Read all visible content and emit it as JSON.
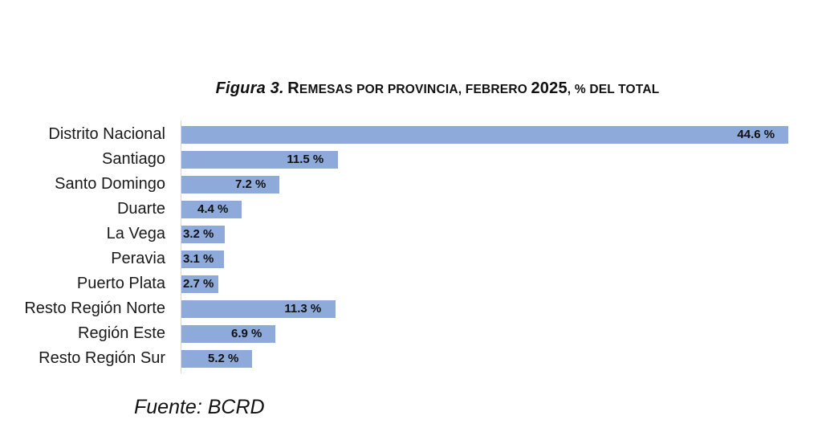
{
  "chart_data": {
    "type": "bar",
    "orientation": "horizontal",
    "title": "Figura 3. Remesas por provincia, febrero 2025, % del total",
    "title_parts": {
      "figure": "Figura 3.",
      "text": " Remesas por provincia, febrero ",
      "year": "2025",
      "rest": ", % del total"
    },
    "xlabel": "",
    "ylabel": "",
    "categories": [
      "Distrito Nacional",
      "Santiago",
      "Santo Domingo",
      "Duarte",
      "La Vega",
      "Peravia",
      "Puerto Plata",
      "Resto Región Norte",
      "Región Este",
      "Resto Región Sur"
    ],
    "values": [
      44.6,
      11.5,
      7.2,
      4.4,
      3.2,
      3.1,
      2.7,
      11.3,
      6.9,
      5.2
    ],
    "value_labels": [
      "44.6 %",
      "11.5 %",
      "7.2 %",
      "4.4 %",
      "3.2 %",
      "3.1 %",
      "2.7 %",
      "11.3 %",
      "6.9 %",
      "5.2 %"
    ],
    "unit": "%",
    "xlim": [
      0,
      44.6
    ],
    "grid": false,
    "legend": null,
    "bar_color": "#8eaadb",
    "source": "Fuente: BCRD"
  }
}
